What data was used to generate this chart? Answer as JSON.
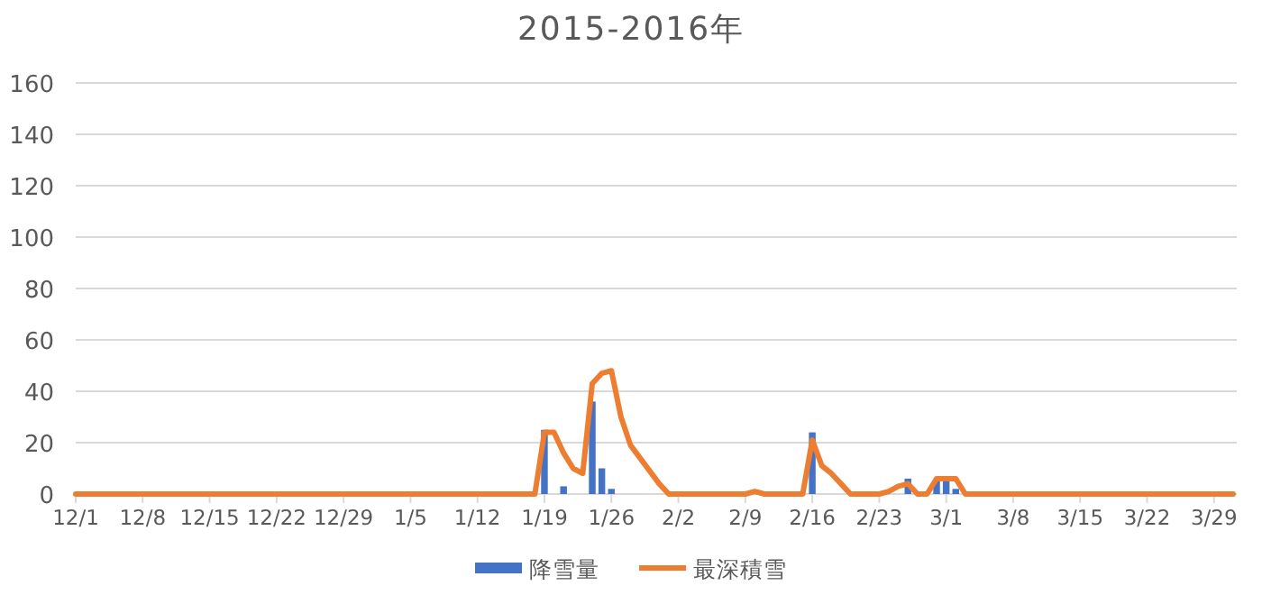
{
  "chart_data": {
    "type": "bar",
    "title": "2015-2016年",
    "categories": [
      "12/1",
      null,
      null,
      null,
      null,
      null,
      null,
      "12/8",
      null,
      null,
      null,
      null,
      null,
      null,
      "12/15",
      null,
      null,
      null,
      null,
      null,
      null,
      "12/22",
      null,
      null,
      null,
      null,
      null,
      null,
      "12/29",
      null,
      null,
      null,
      null,
      null,
      null,
      "1/5",
      null,
      null,
      null,
      null,
      null,
      null,
      "1/12",
      null,
      null,
      null,
      null,
      null,
      null,
      "1/19",
      null,
      null,
      null,
      null,
      null,
      null,
      "1/26",
      null,
      null,
      null,
      null,
      null,
      null,
      "2/2",
      null,
      null,
      null,
      null,
      null,
      null,
      "2/9",
      null,
      null,
      null,
      null,
      null,
      null,
      "2/16",
      null,
      null,
      null,
      null,
      null,
      null,
      "2/23",
      null,
      null,
      null,
      null,
      null,
      null,
      "3/1",
      null,
      null,
      null,
      null,
      null,
      null,
      "3/8",
      null,
      null,
      null,
      null,
      null,
      null,
      "3/15",
      null,
      null,
      null,
      null,
      null,
      null,
      "3/22",
      null,
      null,
      null,
      null,
      null,
      null,
      "3/29",
      null,
      null
    ],
    "series": [
      {
        "name": "降雪量",
        "color": "#4472c4",
        "values": [
          0,
          0,
          0,
          0,
          0,
          0,
          0,
          0,
          0,
          0,
          0,
          0,
          0,
          0,
          0,
          0,
          0,
          0,
          0,
          0,
          0,
          0,
          0,
          0,
          0,
          0,
          0,
          0,
          0,
          0,
          0,
          0,
          0,
          0,
          0,
          0,
          0,
          0,
          0,
          0,
          0,
          0,
          0,
          0,
          0,
          0,
          0,
          0,
          0,
          25,
          0,
          3,
          0,
          0,
          36,
          10,
          2,
          0,
          0,
          0,
          0,
          0,
          0,
          0,
          0,
          0,
          0,
          0,
          0,
          0,
          0,
          0,
          0,
          0,
          0,
          0,
          0,
          24,
          0,
          0,
          0,
          0,
          0,
          0,
          0,
          0,
          0,
          6,
          0,
          0,
          5,
          5,
          2,
          0,
          0,
          0,
          0,
          0,
          0,
          0,
          0,
          0,
          0,
          0,
          0,
          0,
          0,
          0,
          0,
          0,
          0,
          0,
          0,
          0,
          0,
          0,
          0,
          0,
          0,
          0,
          0,
          0
        ]
      },
      {
        "name": "最深積雪",
        "type": "line",
        "color": "#ed7d31",
        "values": [
          0,
          0,
          0,
          0,
          0,
          0,
          0,
          0,
          0,
          0,
          0,
          0,
          0,
          0,
          0,
          0,
          0,
          0,
          0,
          0,
          0,
          0,
          0,
          0,
          0,
          0,
          0,
          0,
          0,
          0,
          0,
          0,
          0,
          0,
          0,
          0,
          0,
          0,
          0,
          0,
          0,
          0,
          0,
          0,
          0,
          0,
          0,
          0,
          0,
          24,
          24,
          16,
          10,
          8,
          43,
          47,
          48,
          30,
          19,
          14,
          9,
          4,
          0,
          0,
          0,
          0,
          0,
          0,
          0,
          0,
          0,
          1,
          0,
          0,
          0,
          0,
          0,
          21,
          11,
          8,
          4,
          0,
          0,
          0,
          0,
          1,
          3,
          4,
          0,
          0,
          6,
          6,
          6,
          0,
          0,
          0,
          0,
          0,
          0,
          0,
          0,
          0,
          0,
          0,
          0,
          0,
          0,
          0,
          0,
          0,
          0,
          0,
          0,
          0,
          0,
          0,
          0,
          0,
          0,
          0,
          0,
          0
        ]
      }
    ],
    "ylim": [
      0,
      160
    ],
    "yticks": [
      0,
      20,
      40,
      60,
      80,
      100,
      120,
      140,
      160
    ],
    "grid": "y",
    "legend": "bottom"
  }
}
